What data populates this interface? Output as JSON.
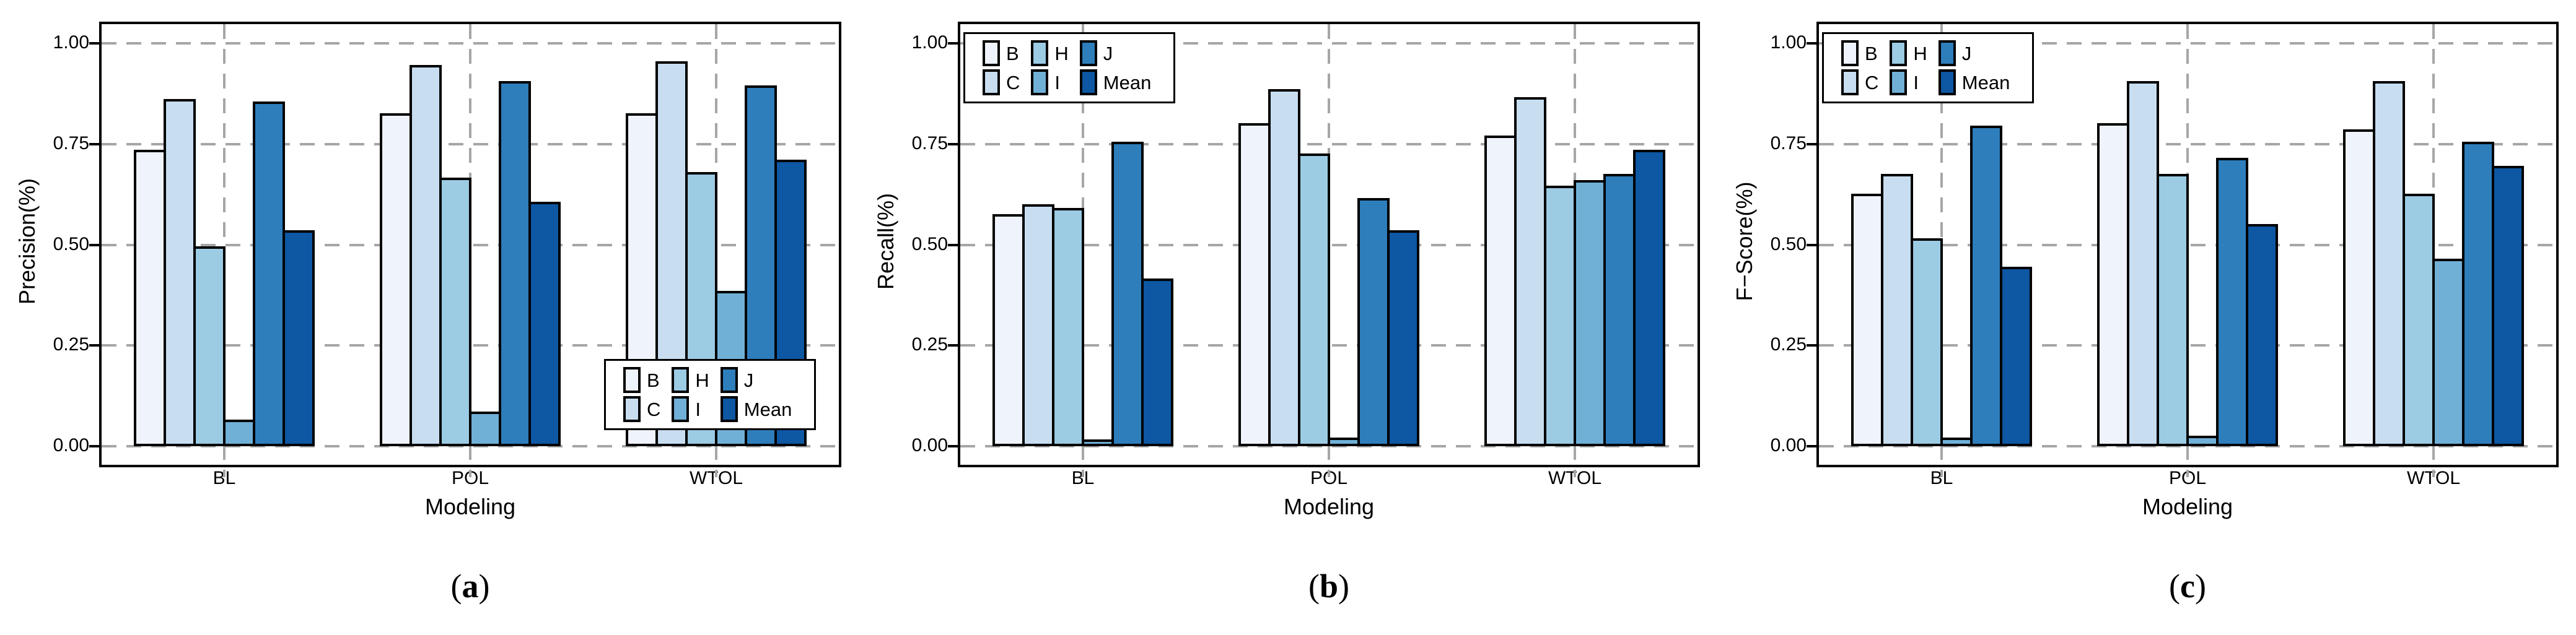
{
  "figure": {
    "background": "#ffffff"
  },
  "axis": {
    "ytick_labels": [
      "1.00",
      "0.75",
      "0.50",
      "0.25",
      "0.00"
    ],
    "ytick_values": [
      1.0,
      0.75,
      0.5,
      0.25,
      0.0
    ],
    "categories": [
      "BL",
      "POL",
      "WTOL"
    ],
    "xlabel": "Modeling"
  },
  "legend": {
    "entries": [
      {
        "label": "B",
        "color": "#eff3fb"
      },
      {
        "label": "C",
        "color": "#c8ddf0"
      },
      {
        "label": "H",
        "color": "#9ccbe4"
      },
      {
        "label": "I",
        "color": "#70b0d7"
      },
      {
        "label": "J",
        "color": "#2e7ebc"
      },
      {
        "label": "Mean",
        "color": "#0d57a3"
      }
    ],
    "columns": [
      [
        "B",
        "C"
      ],
      [
        "H",
        "I"
      ],
      [
        "J",
        "Mean"
      ]
    ]
  },
  "style": {
    "grid_color": "#a6a6a6",
    "spine_color": "#000000",
    "bar_border_color": "#000000"
  },
  "chart_data": [
    {
      "type": "bar",
      "ylabel": "Precision(%)",
      "xlabel": "Modeling",
      "caption_letter": "a",
      "categories": [
        "BL",
        "POL",
        "WTOL"
      ],
      "ylim": [
        0,
        1
      ],
      "grid": true,
      "legend_position": "bottom-right",
      "series": [
        {
          "name": "B",
          "values": [
            0.73,
            0.82,
            0.82
          ]
        },
        {
          "name": "C",
          "values": [
            0.855,
            0.94,
            0.95
          ]
        },
        {
          "name": "H",
          "values": [
            0.49,
            0.66,
            0.675
          ]
        },
        {
          "name": "I",
          "values": [
            0.06,
            0.08,
            0.38
          ]
        },
        {
          "name": "J",
          "values": [
            0.85,
            0.9,
            0.89
          ]
        },
        {
          "name": "Mean",
          "values": [
            0.53,
            0.6,
            0.705
          ]
        }
      ]
    },
    {
      "type": "bar",
      "ylabel": "Recall(%)",
      "xlabel": "Modeling",
      "caption_letter": "b",
      "categories": [
        "BL",
        "POL",
        "WTOL"
      ],
      "ylim": [
        0,
        1
      ],
      "grid": true,
      "legend_position": "top-left",
      "series": [
        {
          "name": "B",
          "values": [
            0.57,
            0.795,
            0.765
          ]
        },
        {
          "name": "C",
          "values": [
            0.595,
            0.88,
            0.86
          ]
        },
        {
          "name": "H",
          "values": [
            0.585,
            0.72,
            0.64
          ]
        },
        {
          "name": "I",
          "values": [
            0.01,
            0.015,
            0.655
          ]
        },
        {
          "name": "J",
          "values": [
            0.75,
            0.61,
            0.67
          ]
        },
        {
          "name": "Mean",
          "values": [
            0.41,
            0.53,
            0.73
          ]
        }
      ]
    },
    {
      "type": "bar",
      "ylabel": "F−Score(%)",
      "xlabel": "Modeling",
      "caption_letter": "c",
      "categories": [
        "BL",
        "POL",
        "WTOL"
      ],
      "ylim": [
        0,
        1
      ],
      "grid": true,
      "legend_position": "top-left",
      "series": [
        {
          "name": "B",
          "values": [
            0.62,
            0.795,
            0.78
          ]
        },
        {
          "name": "C",
          "values": [
            0.67,
            0.9,
            0.9
          ]
        },
        {
          "name": "H",
          "values": [
            0.51,
            0.67,
            0.62
          ]
        },
        {
          "name": "I",
          "values": [
            0.015,
            0.02,
            0.46
          ]
        },
        {
          "name": "J",
          "values": [
            0.79,
            0.71,
            0.75
          ]
        },
        {
          "name": "Mean",
          "values": [
            0.44,
            0.545,
            0.69
          ]
        }
      ]
    }
  ]
}
